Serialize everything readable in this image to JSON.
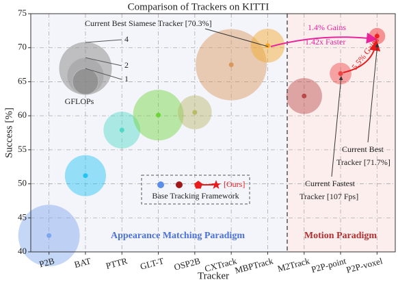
{
  "chart_data": {
    "type": "bubble",
    "title": "Comparison of Trackers on KITTI",
    "x_label": "Tracker",
    "y_label": "Success [%]",
    "categories": [
      "P2B",
      "BAT",
      "PTTR",
      "GLT-T",
      "OSP2B",
      "CXTrack",
      "MBPTrack",
      "M2Track",
      "P2P-point",
      "P2P-voxel"
    ],
    "values": [
      42.4,
      51.2,
      57.9,
      60.1,
      60.5,
      67.5,
      70.3,
      62.9,
      66.2,
      71.7
    ],
    "sizes": [
      5.6,
      2.5,
      2.0,
      3.8,
      1.7,
      7.5,
      1.7,
      1.9,
      0.7,
      0.4
    ],
    "colors": [
      "#7da7ee",
      "#22c4f2",
      "#4fd9c6",
      "#6fd43a",
      "#b9b96a",
      "#d9975a",
      "#f5a623",
      "#b84a4a",
      "#ee4444",
      "#ee2222"
    ],
    "ylim": [
      40,
      75
    ],
    "yticks": [
      40,
      45,
      50,
      55,
      60,
      65,
      70,
      75
    ],
    "grid": true,
    "size_legend": {
      "title": "GFLOPs",
      "values": [
        4,
        2,
        1
      ]
    },
    "regions": [
      "Appearance Matching Paradigm",
      "Motion Paradigm"
    ],
    "annotations": {
      "siamese": "Current Best Siamese Tracker [70.3%]",
      "gains1": "1.4% Gains",
      "faster": "1.42x Faster",
      "gains2": "5.5% Gains",
      "best": [
        "Current Best",
        "Tracker [71.7%]"
      ],
      "fastest": [
        "Current Fastest",
        "Tracker [107 Fps]"
      ]
    },
    "legend": {
      "ours": "[Ours]",
      "base": "Base Tracking Framework"
    }
  }
}
